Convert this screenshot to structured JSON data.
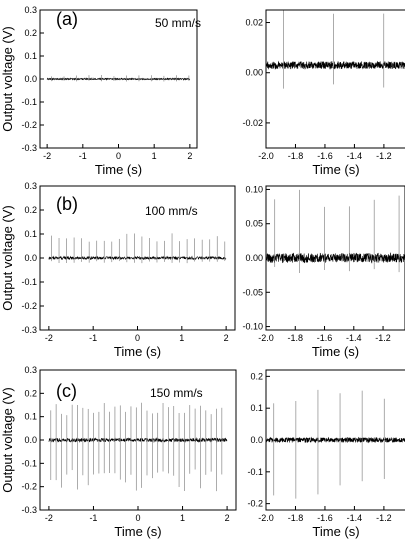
{
  "ylabel": "Output voltage (V)",
  "chart_data": [
    {
      "id": "a-left",
      "type": "line",
      "panel_label": "(a)",
      "annotation": "50 mm/s",
      "xlabel": "Time (s)",
      "ylabel": "Output voltage (V)",
      "xlim": [
        -2.2,
        2.2
      ],
      "ylim": [
        -0.3,
        0.3
      ],
      "xticks": [
        -2,
        -1,
        0,
        1,
        2
      ],
      "xtick_labels": [
        "-2",
        "-1",
        "0",
        "1",
        "2"
      ],
      "yticks": [
        -0.3,
        -0.2,
        -0.1,
        0.0,
        0.1,
        0.2,
        0.3
      ],
      "ytick_labels": [
        "-0.3",
        "-0.2",
        "-0.1",
        "0.0",
        "0.1",
        "0.2",
        "0.3"
      ],
      "signal": {
        "x_range": [
          -2,
          2
        ],
        "baseline": 0,
        "noise_amplitude": 0.003,
        "spike_period": 0.35,
        "spike_pos": 0.015,
        "spike_neg": -0.01
      }
    },
    {
      "id": "a-right",
      "type": "line",
      "xlabel": "Time (s)",
      "xlim": [
        -2.0,
        -1.05
      ],
      "ylim": [
        -0.03,
        0.025
      ],
      "xticks": [
        -2.0,
        -1.8,
        -1.6,
        -1.4,
        -1.2
      ],
      "xtick_labels": [
        "-2.0",
        "-1.8",
        "-1.6",
        "-1.4",
        "-1.2"
      ],
      "yticks": [
        -0.02,
        0.0,
        0.02
      ],
      "ytick_labels": [
        "-0.02",
        "0.00",
        "0.02"
      ],
      "signal": {
        "x_range": [
          -2.0,
          -1.05
        ],
        "baseline": 0.003,
        "noise_amplitude": 0.0015,
        "spike_period": 0.34,
        "spike_pos": 0.022,
        "spike_neg": -0.01
      }
    },
    {
      "id": "b-left",
      "type": "line",
      "panel_label": "(b)",
      "annotation": "100 mm/s",
      "xlabel": "Time (s)",
      "ylabel": "Output voltage (V)",
      "xlim": [
        -2.2,
        2.2
      ],
      "ylim": [
        -0.3,
        0.3
      ],
      "xticks": [
        -2,
        -1,
        0,
        1,
        2
      ],
      "xtick_labels": [
        "-2",
        "-1",
        "0",
        "1",
        "2"
      ],
      "yticks": [
        -0.3,
        -0.2,
        -0.1,
        0.0,
        0.1,
        0.2,
        0.3
      ],
      "ytick_labels": [
        "-0.3",
        "-0.2",
        "-0.1",
        "0.0",
        "0.1",
        "0.2",
        "0.3"
      ],
      "signal": {
        "x_range": [
          -2,
          2
        ],
        "baseline": 0,
        "noise_amplitude": 0.006,
        "spike_period": 0.17,
        "spike_pos": 0.09,
        "spike_neg": -0.02
      }
    },
    {
      "id": "b-right",
      "type": "line",
      "xlabel": "Time (s)",
      "xlim": [
        -2.0,
        -1.05
      ],
      "ylim": [
        -0.105,
        0.105
      ],
      "xticks": [
        -2.0,
        -1.8,
        -1.6,
        -1.4,
        -1.2
      ],
      "xtick_labels": [
        "-2.0",
        "-1.8",
        "-1.6",
        "-1.4",
        "-1.2"
      ],
      "yticks": [
        -0.1,
        -0.05,
        0.0,
        0.05,
        0.1
      ],
      "ytick_labels": [
        "-0.10",
        "-0.05",
        "0.00",
        "0.05",
        "0.10"
      ],
      "signal": {
        "x_range": [
          -2.0,
          -1.05
        ],
        "baseline": 0,
        "noise_amplitude": 0.007,
        "spike_period": 0.17,
        "spike_pos": 0.09,
        "spike_neg": -0.02
      }
    },
    {
      "id": "c-left",
      "type": "line",
      "panel_label": "(c)",
      "annotation": "150 mm/s",
      "xlabel": "Time (s)",
      "ylabel": "Output voltage (V)",
      "xlim": [
        -2.2,
        2.2
      ],
      "ylim": [
        -0.3,
        0.3
      ],
      "xticks": [
        -2,
        -1,
        0,
        1,
        2
      ],
      "xtick_labels": [
        "-2",
        "-1",
        "0",
        "1",
        "2"
      ],
      "yticks": [
        -0.3,
        -0.2,
        -0.1,
        0.0,
        0.1,
        0.2,
        0.3
      ],
      "ytick_labels": [
        "-0.3",
        "-0.2",
        "-0.1",
        "0.0",
        "0.1",
        "0.2",
        "0.3"
      ],
      "signal": {
        "x_range": [
          -2,
          2
        ],
        "baseline": 0,
        "noise_amplitude": 0.008,
        "spike_period": 0.12,
        "spike_pos": 0.14,
        "spike_neg": -0.2
      }
    },
    {
      "id": "c-right",
      "type": "line",
      "xlabel": "Time (s)",
      "xlim": [
        -2.0,
        -1.05
      ],
      "ylim": [
        -0.22,
        0.22
      ],
      "xticks": [
        -2.0,
        -1.8,
        -1.6,
        -1.4,
        -1.2
      ],
      "xtick_labels": [
        "-2.0",
        "-1.8",
        "-1.6",
        "-1.4",
        "-1.2"
      ],
      "yticks": [
        -0.2,
        -0.1,
        0.0,
        0.1,
        0.2
      ],
      "ytick_labels": [
        "-0.2",
        "-0.1",
        "0.0",
        "0.1",
        "0.2"
      ],
      "signal": {
        "x_range": [
          -2.0,
          -1.05
        ],
        "baseline": 0,
        "noise_amplitude": 0.008,
        "spike_period": 0.15,
        "spike_pos": 0.14,
        "spike_neg": -0.2
      }
    }
  ]
}
